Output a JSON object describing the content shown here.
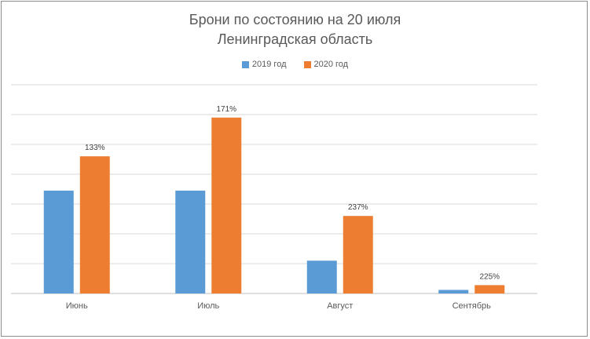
{
  "chart_data": {
    "type": "bar",
    "title": "Брони по состоянию на 20 июля",
    "subtitle": "Ленинградская область",
    "categories": [
      "Июнь",
      "Июль",
      "Август",
      "Сентябрь"
    ],
    "series": [
      {
        "name": "2019 год",
        "color": "#5b9bd5",
        "values": [
          3.45,
          3.45,
          1.1,
          0.12
        ]
      },
      {
        "name": "2020 год",
        "color": "#ed7d31",
        "values": [
          4.6,
          5.9,
          2.6,
          0.28
        ]
      }
    ],
    "data_labels": [
      "133%",
      "171%",
      "237%",
      "225%"
    ],
    "data_labels_series": "2020 год",
    "ylim": [
      0,
      7
    ],
    "grid": true,
    "y_axis_labels_shown": false,
    "legend": "top-center"
  }
}
